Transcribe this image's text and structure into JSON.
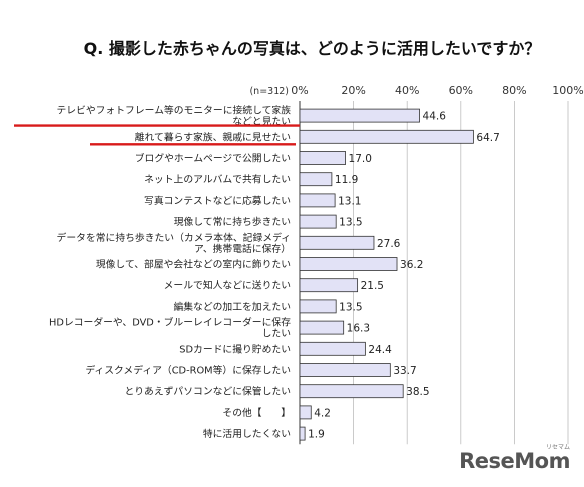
{
  "chart_data": {
    "type": "bar",
    "orientation": "horizontal",
    "title": "Q. 撮影した赤ちゃんの写真は、どのように活用したいですか？",
    "sample_note": "(n=312)",
    "xlim": [
      0,
      100
    ],
    "tick_labels": [
      "0%",
      "20%",
      "40%",
      "60%",
      "80%",
      "100%"
    ],
    "grid": true,
    "bar_color": "#e2e2f6",
    "bar_border_color": "#333333",
    "highlight_color": "#d81a1a",
    "highlighted_rows": [
      0,
      1
    ],
    "categories": [
      [
        "テレビやフォトフレーム等のモニターに接続して家族",
        "などと見たい"
      ],
      [
        "離れて暮らす家族、親戚に見せたい"
      ],
      [
        "ブログやホームページで公開したい"
      ],
      [
        "ネット上のアルバムで共有したい"
      ],
      [
        "写真コンテストなどに応募したい"
      ],
      [
        "現像して常に持ち歩きたい"
      ],
      [
        "データを常に持ち歩きたい（カメラ本体、記録メディ",
        "ア、携帯電話に保存）"
      ],
      [
        "現像して、部屋や会社などの室内に飾りたい"
      ],
      [
        "メールで知人などに送りたい"
      ],
      [
        "編集などの加工を加えたい"
      ],
      [
        "HDレコーダーや、DVD・ブルーレイレコーダーに保存",
        "したい"
      ],
      [
        "SDカードに撮り貯めたい"
      ],
      [
        "ディスクメディア（CD-ROM等）に保存したい"
      ],
      [
        "とりあえずパソコンなどに保管したい"
      ],
      [
        "その他【　　】"
      ],
      [
        "特に活用したくない"
      ]
    ],
    "values": [
      44.6,
      64.7,
      17.0,
      11.9,
      13.1,
      13.5,
      27.6,
      36.2,
      21.5,
      13.5,
      16.3,
      24.4,
      33.7,
      38.5,
      4.2,
      1.9
    ],
    "value_labels": [
      "44.6",
      "64.7",
      "17.0",
      "11.9",
      "13.1",
      "13.5",
      "27.6",
      "36.2",
      "21.5",
      "13.5",
      "16.3",
      "24.4",
      "33.7",
      "38.5",
      "4.2",
      "1.9"
    ]
  },
  "watermark": {
    "text": "ReseMom",
    "sub": "リセマム"
  }
}
